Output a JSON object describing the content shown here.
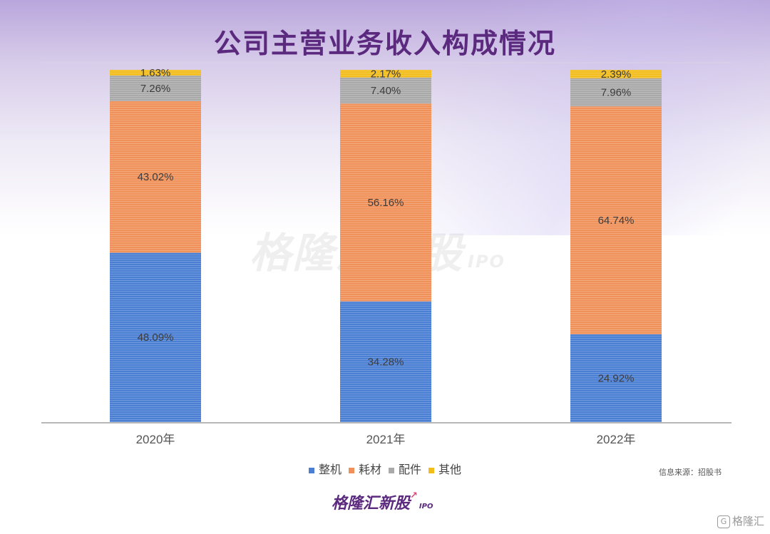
{
  "title": "公司主营业务收入构成情况",
  "chart_data": {
    "type": "bar",
    "stacked": true,
    "percent": true,
    "categories": [
      "2020年",
      "2021年",
      "2022年"
    ],
    "series": [
      {
        "name": "整机",
        "color": "#4a7fd4",
        "values": [
          48.09,
          34.28,
          24.92
        ],
        "labels": [
          "48.09%",
          "34.28%",
          "24.92%"
        ]
      },
      {
        "name": "耗材",
        "color": "#f0915a",
        "values": [
          43.02,
          56.16,
          64.74
        ],
        "labels": [
          "43.02%",
          "56.16%",
          "64.74%"
        ]
      },
      {
        "name": "配件",
        "color": "#a9a9a9",
        "values": [
          7.26,
          7.4,
          7.96
        ],
        "labels": [
          "7.26%",
          "7.40%",
          "7.96%"
        ]
      },
      {
        "name": "其他",
        "color": "#f2bc1b",
        "values": [
          1.63,
          2.17,
          2.39
        ],
        "labels": [
          "1.63%",
          "2.17%",
          "2.39%"
        ]
      }
    ],
    "ylim": [
      0,
      100
    ],
    "legend_position": "bottom"
  },
  "source": "信息来源：招股书",
  "logo": {
    "name": "格隆汇新股",
    "ipo": "IPO"
  },
  "watermark": {
    "name": "格隆汇新股",
    "ipo": "IPO"
  },
  "corner_brand": {
    "icon": "G",
    "name": "格隆汇"
  }
}
